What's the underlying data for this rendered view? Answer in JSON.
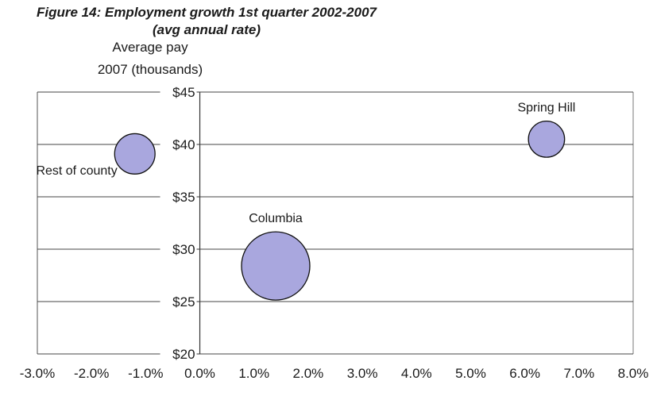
{
  "chart_data": {
    "type": "scatter",
    "bubble": true,
    "title": "Figure 14: Employment growth 1st quarter 2002-2007",
    "subtitle": "(avg annual rate)",
    "ylabel_lines": [
      "Average pay",
      "2007 (thousands)"
    ],
    "xlim": [
      -3.0,
      8.0
    ],
    "ylim": [
      20,
      45
    ],
    "x_ticks": [
      "-3.0%",
      "-2.0%",
      "-1.0%",
      "0.0%",
      "1.0%",
      "2.0%",
      "3.0%",
      "4.0%",
      "5.0%",
      "6.0%",
      "7.0%",
      "8.0%"
    ],
    "x_tick_values": [
      -3,
      -2,
      -1,
      0,
      1,
      2,
      3,
      4,
      5,
      6,
      7,
      8
    ],
    "y_ticks": [
      "$20",
      "$25",
      "$30",
      "$35",
      "$40",
      "$45"
    ],
    "y_tick_values": [
      20,
      25,
      30,
      35,
      40,
      45
    ],
    "grid": "horizontal",
    "bubble_color": "#a9a7de",
    "points": [
      {
        "label": "Rest of county",
        "x": -1.2,
        "y": 39.1,
        "size": 0.35,
        "label_pos": "left-below"
      },
      {
        "label": "Spring Hill",
        "x": 6.4,
        "y": 40.5,
        "size": 0.28,
        "label_pos": "above"
      },
      {
        "label": "Columbia",
        "x": 1.4,
        "y": 28.4,
        "size": 1.0,
        "label_pos": "above"
      }
    ]
  }
}
